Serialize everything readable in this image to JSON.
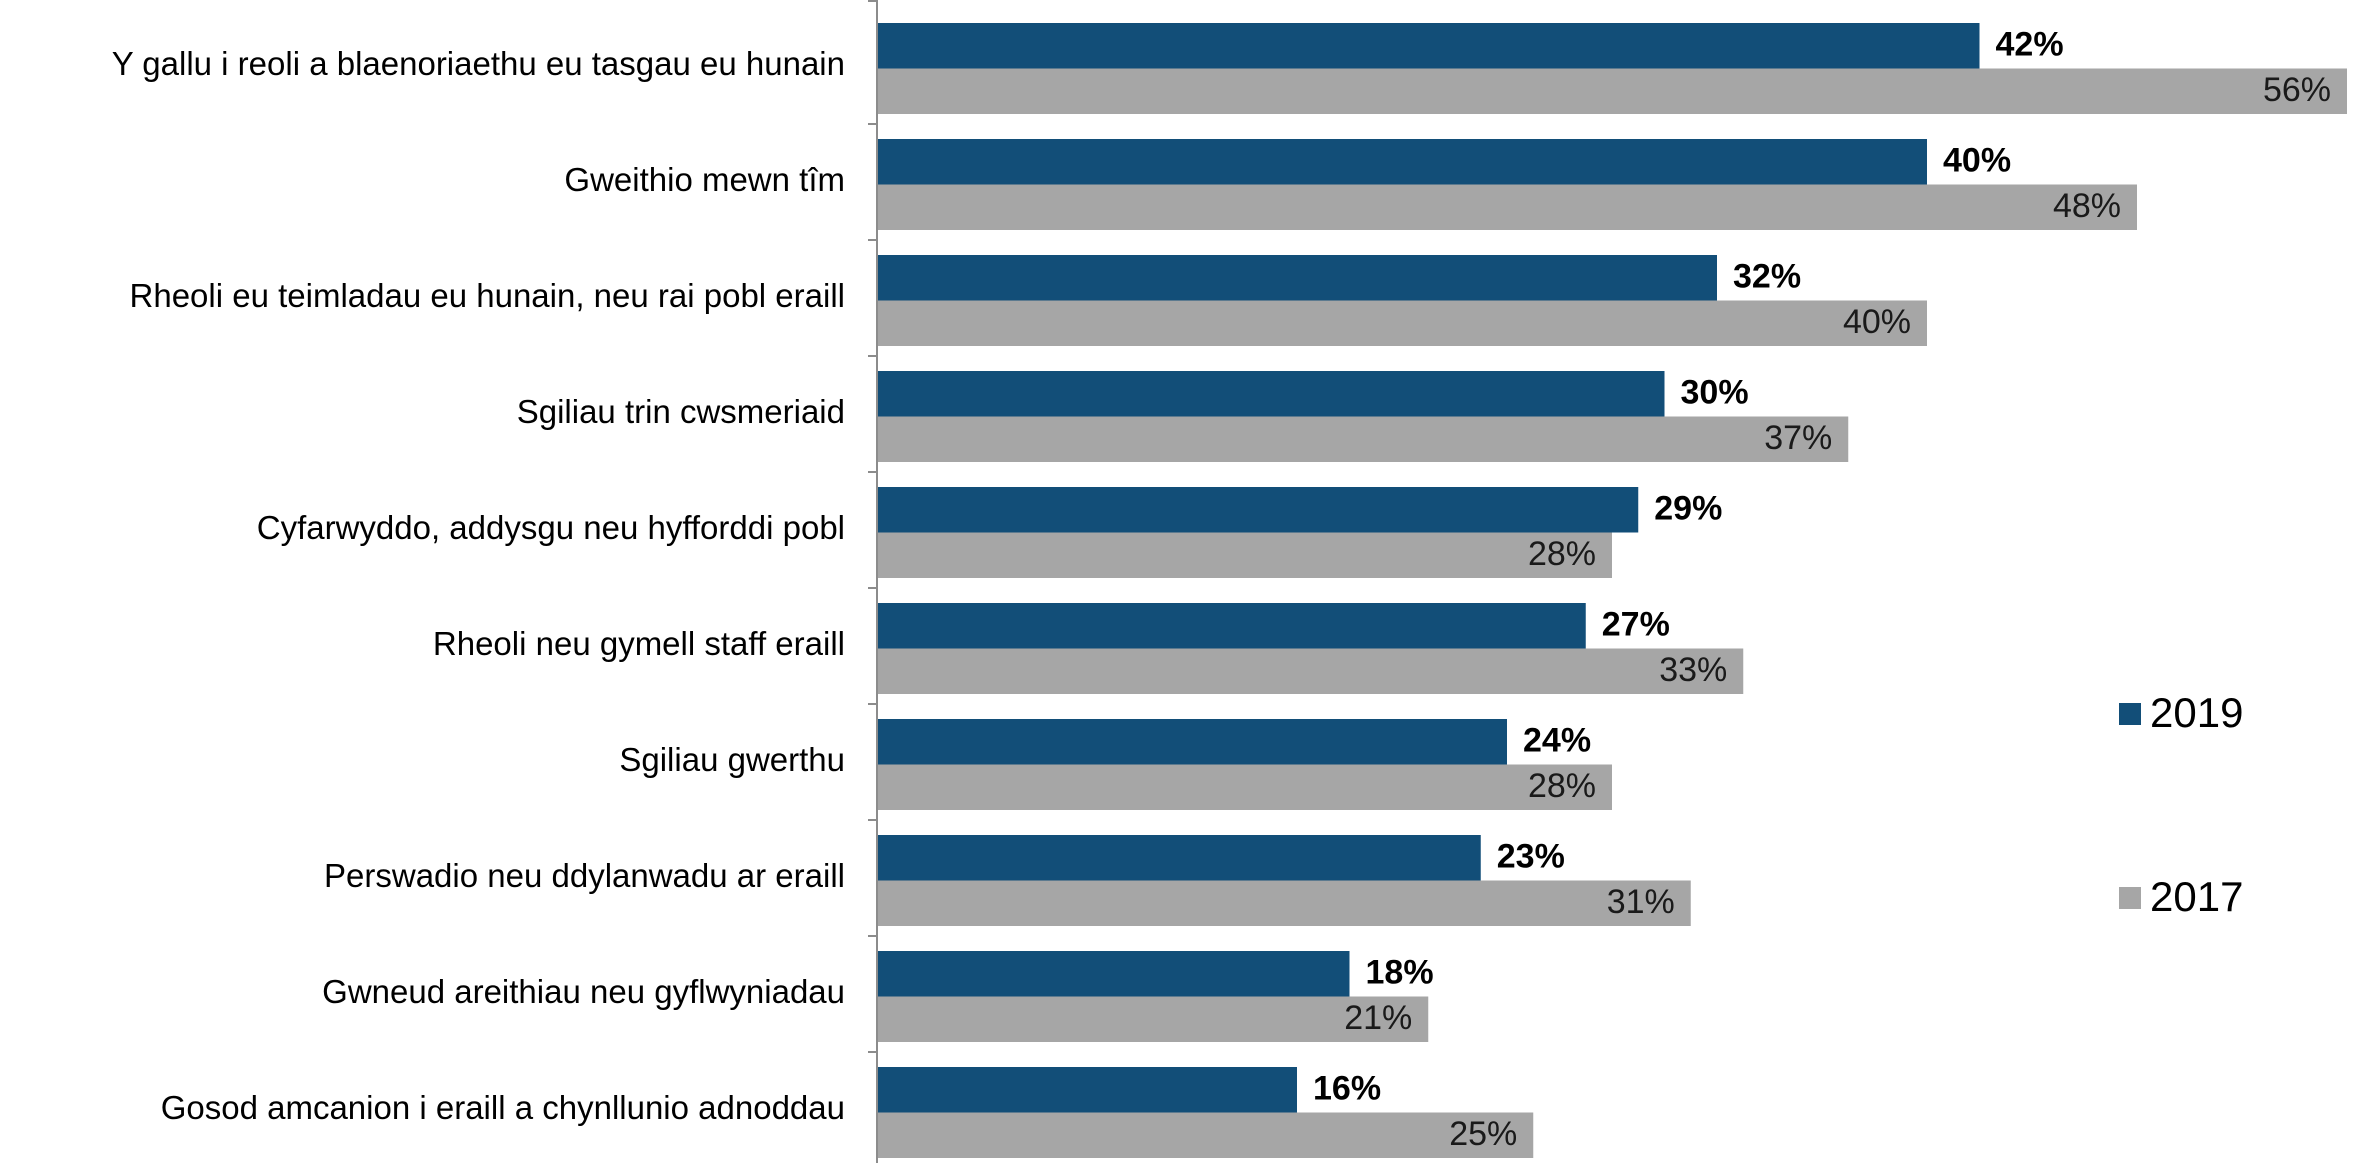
{
  "chart_data": {
    "type": "bar",
    "orientation": "horizontal",
    "categories": [
      "Y gallu i reoli a blaenoriaethu eu tasgau eu hunain",
      "Gweithio mewn tîm",
      "Rheoli eu teimladau eu hunain, neu rai pobl eraill",
      "Sgiliau trin cwsmeriaid",
      "Cyfarwyddo, addysgu neu hyfforddi pobl",
      "Rheoli neu gymell staff eraill",
      "Sgiliau gwerthu",
      "Perswadio neu ddylanwadu ar eraill",
      "Gwneud areithiau neu gyflwyniadau",
      "Gosod amcanion i eraill a chynllunio adnoddau"
    ],
    "series": [
      {
        "name": "2019",
        "color": "#124e78",
        "values": [
          42,
          40,
          32,
          30,
          29,
          27,
          24,
          23,
          18,
          16
        ],
        "labels": [
          "42%",
          "40%",
          "32%",
          "30%",
          "29%",
          "27%",
          "24%",
          "23%",
          "18%",
          "16%"
        ]
      },
      {
        "name": "2017",
        "color": "#a6a6a6",
        "values": [
          56,
          48,
          40,
          37,
          28,
          33,
          28,
          31,
          21,
          25
        ],
        "labels": [
          "56%",
          "48%",
          "40%",
          "37%",
          "28%",
          "33%",
          "28%",
          "31%",
          "21%",
          "25%"
        ]
      }
    ],
    "xlim": [
      0,
      56
    ],
    "grid": false,
    "legend_position": "right",
    "title": "",
    "xlabel": "",
    "ylabel": ""
  }
}
